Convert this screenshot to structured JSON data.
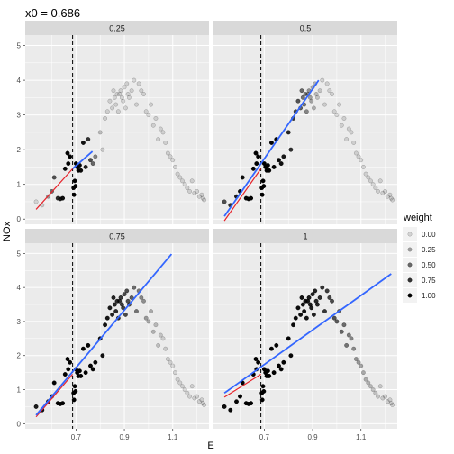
{
  "chart_data": {
    "type": "scatter",
    "title": "x0 =  0.686",
    "xlabel": "E",
    "ylabel": "NOx",
    "x_ticks": [
      0.7,
      0.9,
      1.1
    ],
    "x_tick_labels": [
      "0.7",
      "0.9",
      "1.1"
    ],
    "y_ticks": [
      0,
      1,
      2,
      3,
      4,
      5
    ],
    "y_tick_labels": [
      "0",
      "1",
      "2",
      "3",
      "4",
      "5"
    ],
    "xlim": [
      0.49,
      1.25
    ],
    "ylim": [
      -0.15,
      5.3
    ],
    "grid": true,
    "x0": 0.686,
    "legend": {
      "title": "weight",
      "entries": [
        "0.00",
        "0.25",
        "0.50",
        "0.75",
        "1.00"
      ],
      "levels": [
        0,
        0.25,
        0.5,
        0.75,
        1
      ],
      "position": "right"
    },
    "points": {
      "E": [
        0.535,
        0.56,
        0.585,
        0.6,
        0.61,
        0.625,
        0.635,
        0.645,
        0.655,
        0.665,
        0.668,
        0.675,
        0.69,
        0.692,
        0.695,
        0.698,
        0.7,
        0.705,
        0.71,
        0.715,
        0.72,
        0.73,
        0.74,
        0.75,
        0.76,
        0.77,
        0.78,
        0.8,
        0.81,
        0.82,
        0.83,
        0.84,
        0.85,
        0.855,
        0.86,
        0.865,
        0.87,
        0.875,
        0.88,
        0.885,
        0.89,
        0.895,
        0.9,
        0.905,
        0.91,
        0.915,
        0.92,
        0.93,
        0.94,
        0.95,
        0.96,
        0.97,
        0.98,
        0.99,
        1.0,
        1.01,
        1.02,
        1.03,
        1.04,
        1.05,
        1.06,
        1.07,
        1.08,
        1.09,
        1.1,
        1.11,
        1.12,
        1.13,
        1.14,
        1.15,
        1.16,
        1.17,
        1.18,
        1.19,
        1.2,
        1.21,
        1.22,
        1.225,
        1.23
      ],
      "NOx": [
        0.5,
        0.4,
        0.65,
        0.8,
        1.2,
        0.6,
        0.58,
        0.6,
        1.45,
        1.9,
        1.6,
        1.8,
        0.9,
        0.7,
        1.1,
        0.95,
        1.6,
        1.5,
        1.4,
        1.55,
        1.4,
        2.2,
        1.5,
        2.3,
        1.7,
        1.6,
        1.8,
        2.5,
        2.0,
        2.9,
        3.1,
        3.4,
        3.2,
        3.7,
        3.5,
        3.3,
        3.6,
        3.1,
        3.6,
        3.7,
        3.5,
        3.4,
        3.8,
        3.2,
        3.9,
        3.6,
        3.5,
        3.7,
        4.0,
        3.3,
        3.9,
        3.7,
        3.6,
        3.1,
        3.0,
        3.3,
        2.7,
        2.9,
        2.3,
        2.6,
        2.5,
        2.2,
        1.9,
        1.8,
        1.7,
        1.5,
        1.3,
        1.2,
        1.1,
        1.0,
        0.9,
        0.8,
        1.1,
        0.75,
        0.8,
        0.65,
        0.7,
        0.6,
        0.55
      ]
    },
    "panels": [
      {
        "label": "0.25",
        "span": 0.25,
        "blue": {
          "x": [
            0.686,
            0.768
          ],
          "y": [
            1.45,
            1.95
          ]
        },
        "red": {
          "x": [
            0.535,
            0.686
          ],
          "y": [
            0.28,
            1.45
          ]
        }
      },
      {
        "label": "0.5",
        "span": 0.5,
        "blue": {
          "x": [
            0.535,
            0.925
          ],
          "y": [
            0.08,
            4.0
          ]
        },
        "red": {
          "x": [
            0.535,
            0.686
          ],
          "y": [
            -0.05,
            1.45
          ]
        }
      },
      {
        "label": "0.75",
        "span": 0.75,
        "blue": {
          "x": [
            0.535,
            1.095
          ],
          "y": [
            0.25,
            4.98
          ]
        },
        "red": {
          "x": [
            0.535,
            0.686
          ],
          "y": [
            0.2,
            1.45
          ]
        }
      },
      {
        "label": "1",
        "span": 1,
        "blue": {
          "x": [
            0.535,
            1.225
          ],
          "y": [
            0.9,
            4.4
          ]
        },
        "red": {
          "x": [
            0.535,
            0.686
          ],
          "y": [
            0.78,
            1.45
          ]
        }
      }
    ],
    "colors": {
      "panel_bg": "#ebebeb",
      "strip_bg": "#d9d9d9",
      "grid": "#ffffff",
      "blue_fit": "#3366ff",
      "red_fit": "#e8222a",
      "vline": "#000000"
    }
  }
}
